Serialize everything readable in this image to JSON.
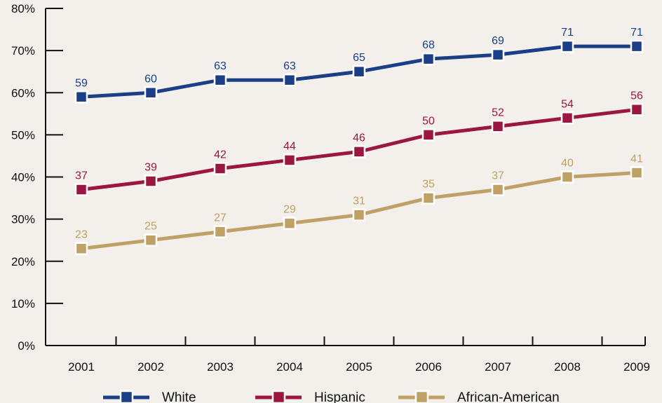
{
  "chart_data": {
    "type": "line",
    "title": "",
    "xlabel": "",
    "ylabel": "",
    "x": [
      "2001",
      "2002",
      "2003",
      "2004",
      "2005",
      "2006",
      "2007",
      "2008",
      "2009"
    ],
    "ylim": [
      0,
      80
    ],
    "yticks": [
      "0%",
      "10%",
      "20%",
      "30%",
      "40%",
      "50%",
      "60%",
      "70%",
      "80%"
    ],
    "ytick_values": [
      0,
      10,
      20,
      30,
      40,
      50,
      60,
      70,
      80
    ],
    "grid": false,
    "legend_position": "bottom",
    "series": [
      {
        "name": "White",
        "color": "#1b3f87",
        "values": [
          59,
          60,
          63,
          63,
          65,
          68,
          69,
          71,
          71
        ]
      },
      {
        "name": "Hispanic",
        "color": "#9b1740",
        "values": [
          37,
          39,
          42,
          44,
          46,
          50,
          52,
          54,
          56
        ]
      },
      {
        "name": "African-American",
        "color": "#bfa166",
        "values": [
          23,
          25,
          27,
          29,
          31,
          35,
          37,
          40,
          41
        ]
      }
    ]
  }
}
